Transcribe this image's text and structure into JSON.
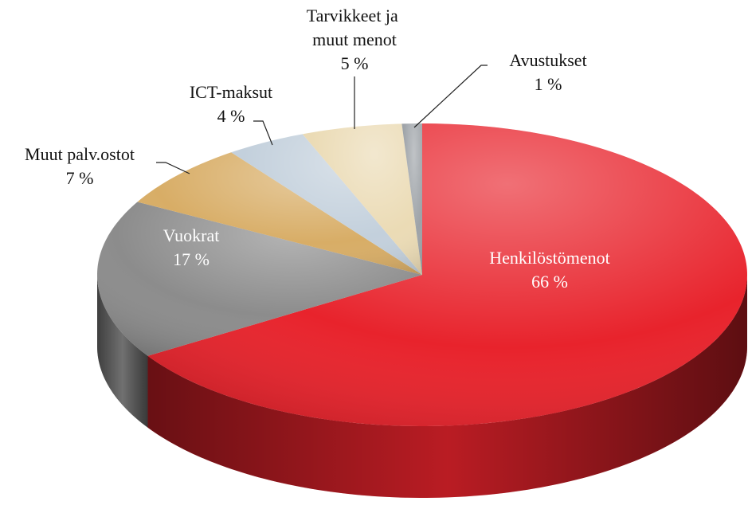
{
  "chart_data": {
    "type": "pie",
    "categories": [
      "Henkilöstömenot",
      "Vuokrat",
      "Muut palv.ostot",
      "ICT-maksut",
      "Tarvikkeet ja muut menot",
      "Avustukset"
    ],
    "values": [
      66,
      17,
      7,
      4,
      5,
      1
    ],
    "value_labels": [
      "66 %",
      "17 %",
      "7 %",
      "4 %",
      "5 %",
      "1 %"
    ],
    "colors": [
      "#e8232c",
      "#8c8c8c",
      "#d8ad66",
      "#c3d0dc",
      "#ebdbb5",
      "#9ea3a8"
    ]
  }
}
